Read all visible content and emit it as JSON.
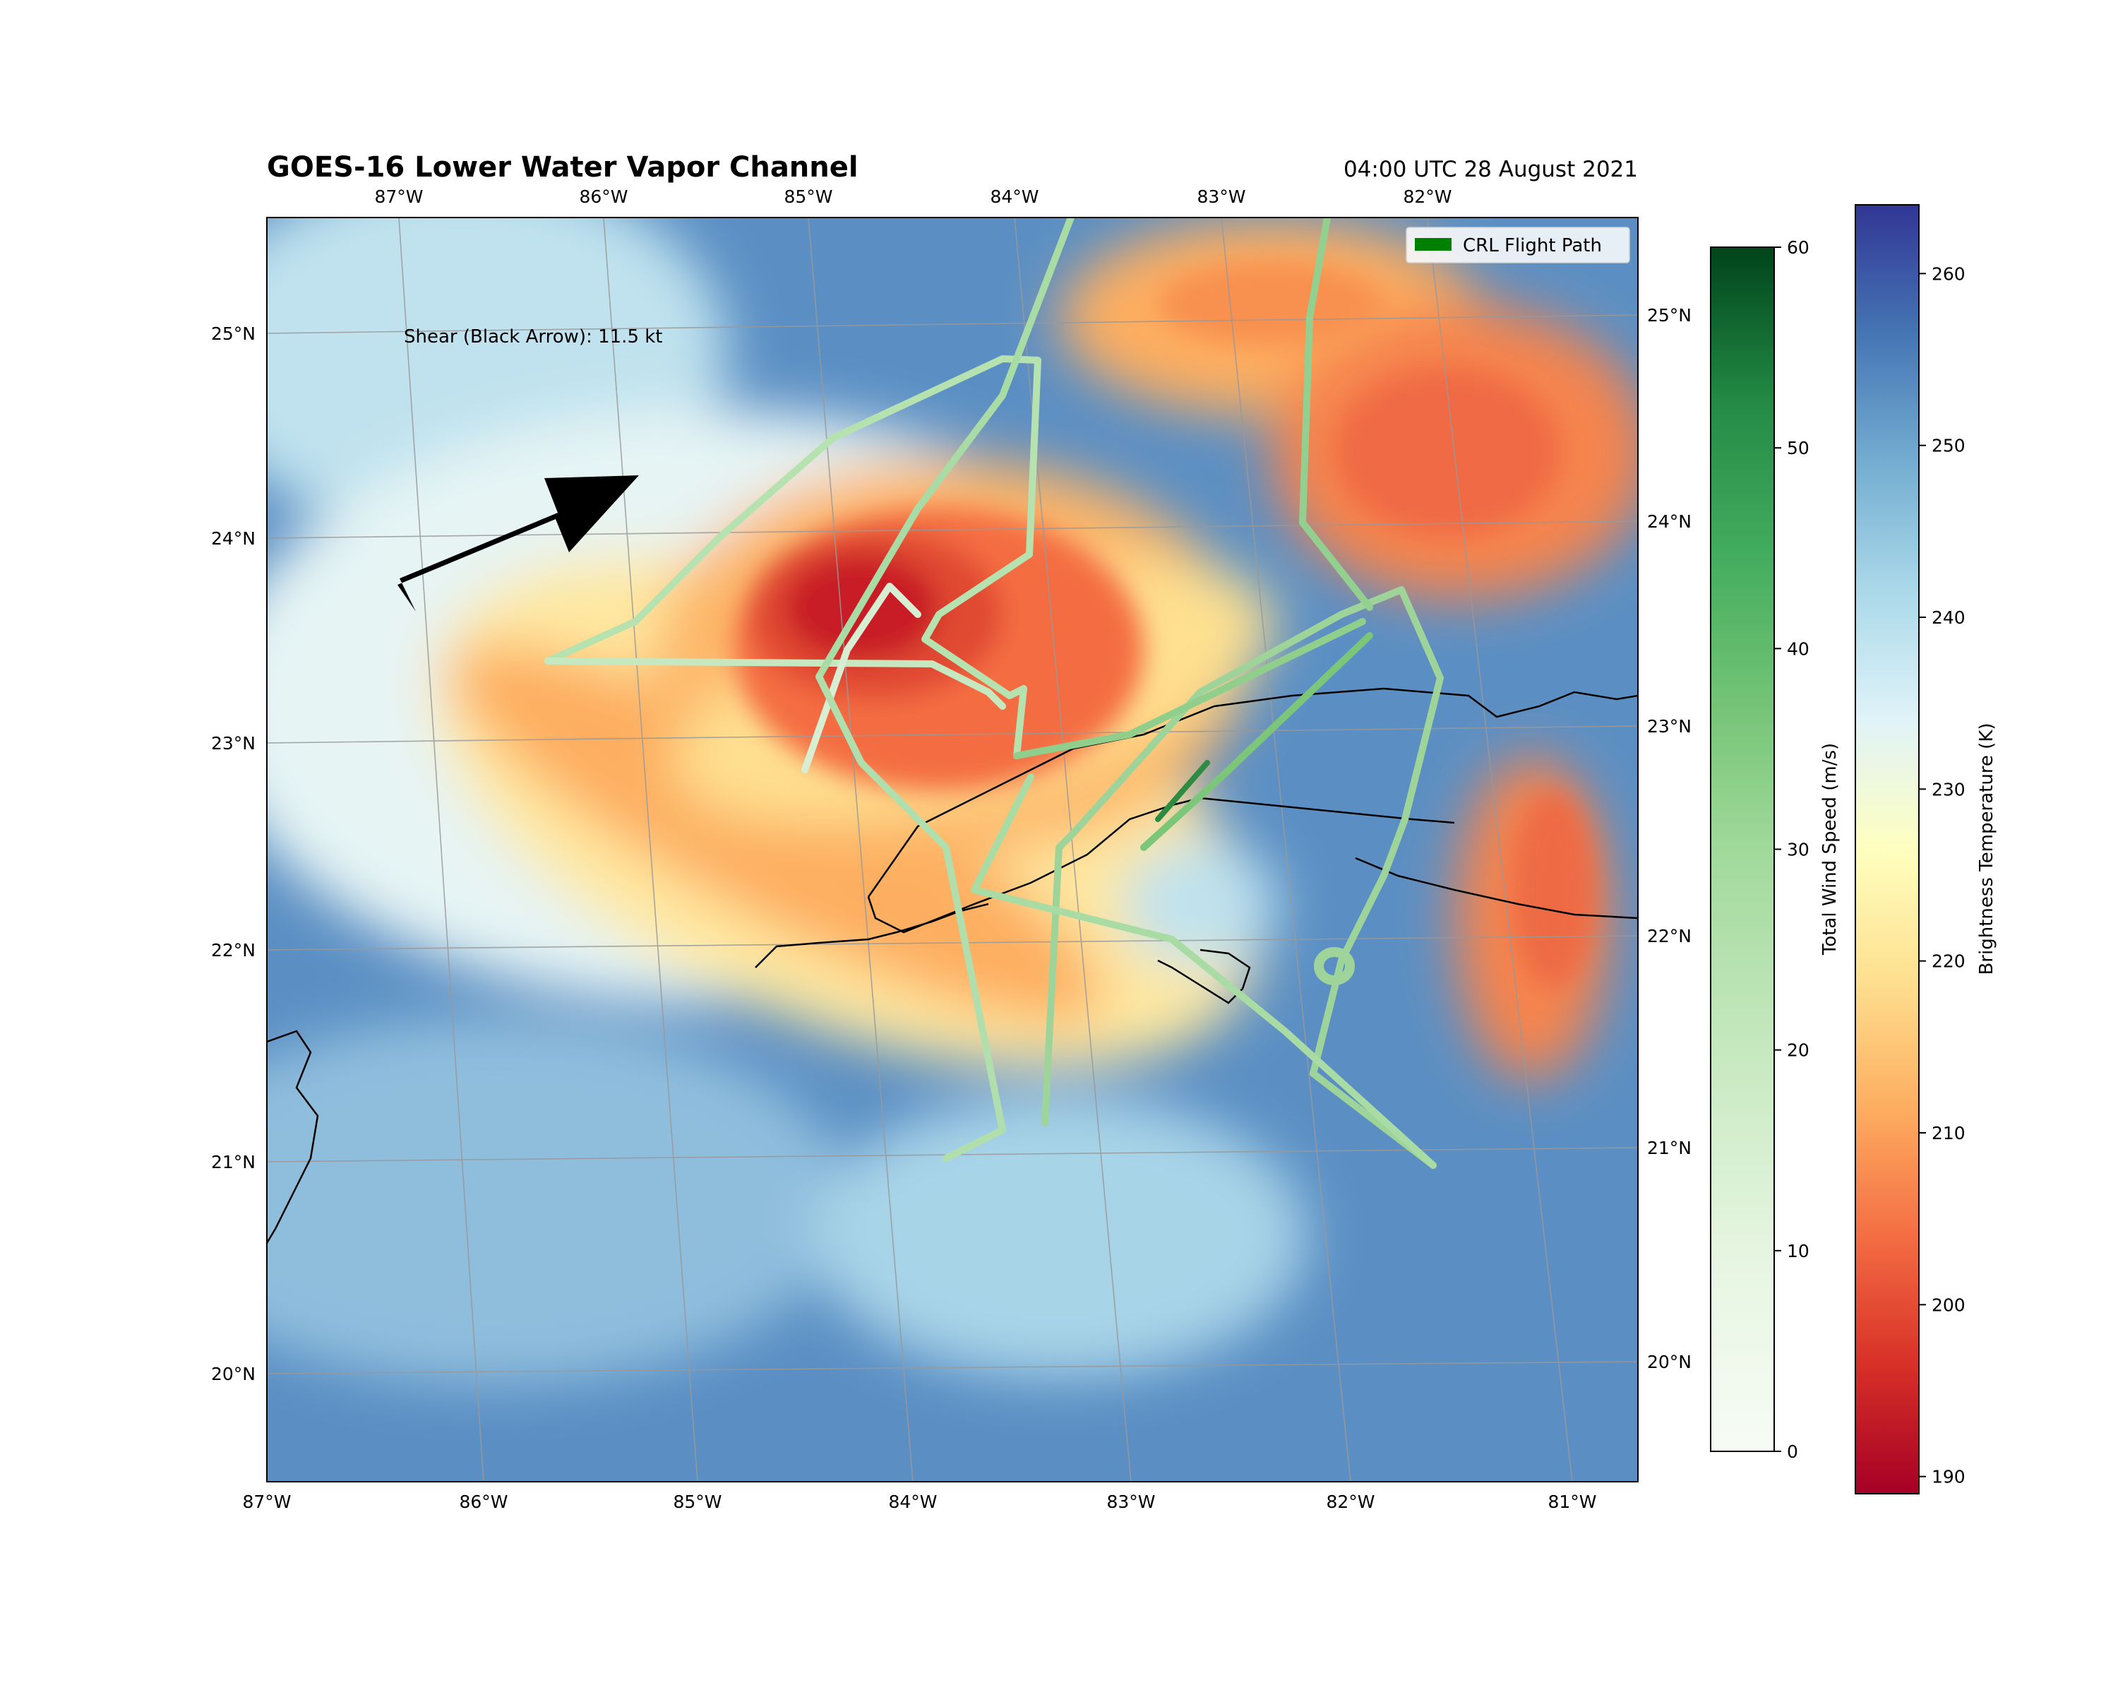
{
  "title": "GOES-16 Lower Water Vapor Channel",
  "timestamp": "04:00 UTC 28 August 2021",
  "annotation": "Shear (Black Arrow): 11.5 kt",
  "legend": {
    "label": "CRL Flight Path",
    "color": "#008000"
  },
  "map": {
    "lon_range": [
      -87,
      -80.7
    ],
    "lat_range": [
      19.5,
      25.6
    ],
    "bottom_lon_ticks": [
      "87°W",
      "86°W",
      "85°W",
      "84°W",
      "83°W",
      "82°W",
      "81°W"
    ],
    "top_lon_ticks": [
      "87°W",
      "86°W",
      "85°W",
      "84°W",
      "83°W",
      "82°W"
    ],
    "left_lat_ticks": [
      "25°N",
      "24°N",
      "23°N",
      "22°N",
      "21°N",
      "20°N"
    ],
    "right_lat_ticks": [
      "25°N",
      "24°N",
      "23°N",
      "22°N",
      "21°N",
      "20°N"
    ]
  },
  "colorbars": {
    "wind": {
      "label": "Total Wind Speed (m/s)",
      "colormap": "Greens",
      "range": [
        0,
        60
      ],
      "ticks": [
        "0",
        "10",
        "20",
        "30",
        "40",
        "50",
        "60"
      ]
    },
    "brightness": {
      "label": "Brightness Temperature (K)",
      "colormap": "RdYlBu",
      "range": [
        189,
        264
      ],
      "ticks": [
        "190",
        "200",
        "210",
        "220",
        "230",
        "240",
        "250",
        "260"
      ]
    }
  },
  "colors": {
    "cold_high_cloud": "#d73027",
    "warm_clear": "#4575b4",
    "coastline": "#000000",
    "gridline": "#999999",
    "shear_arrow": "#000000"
  }
}
